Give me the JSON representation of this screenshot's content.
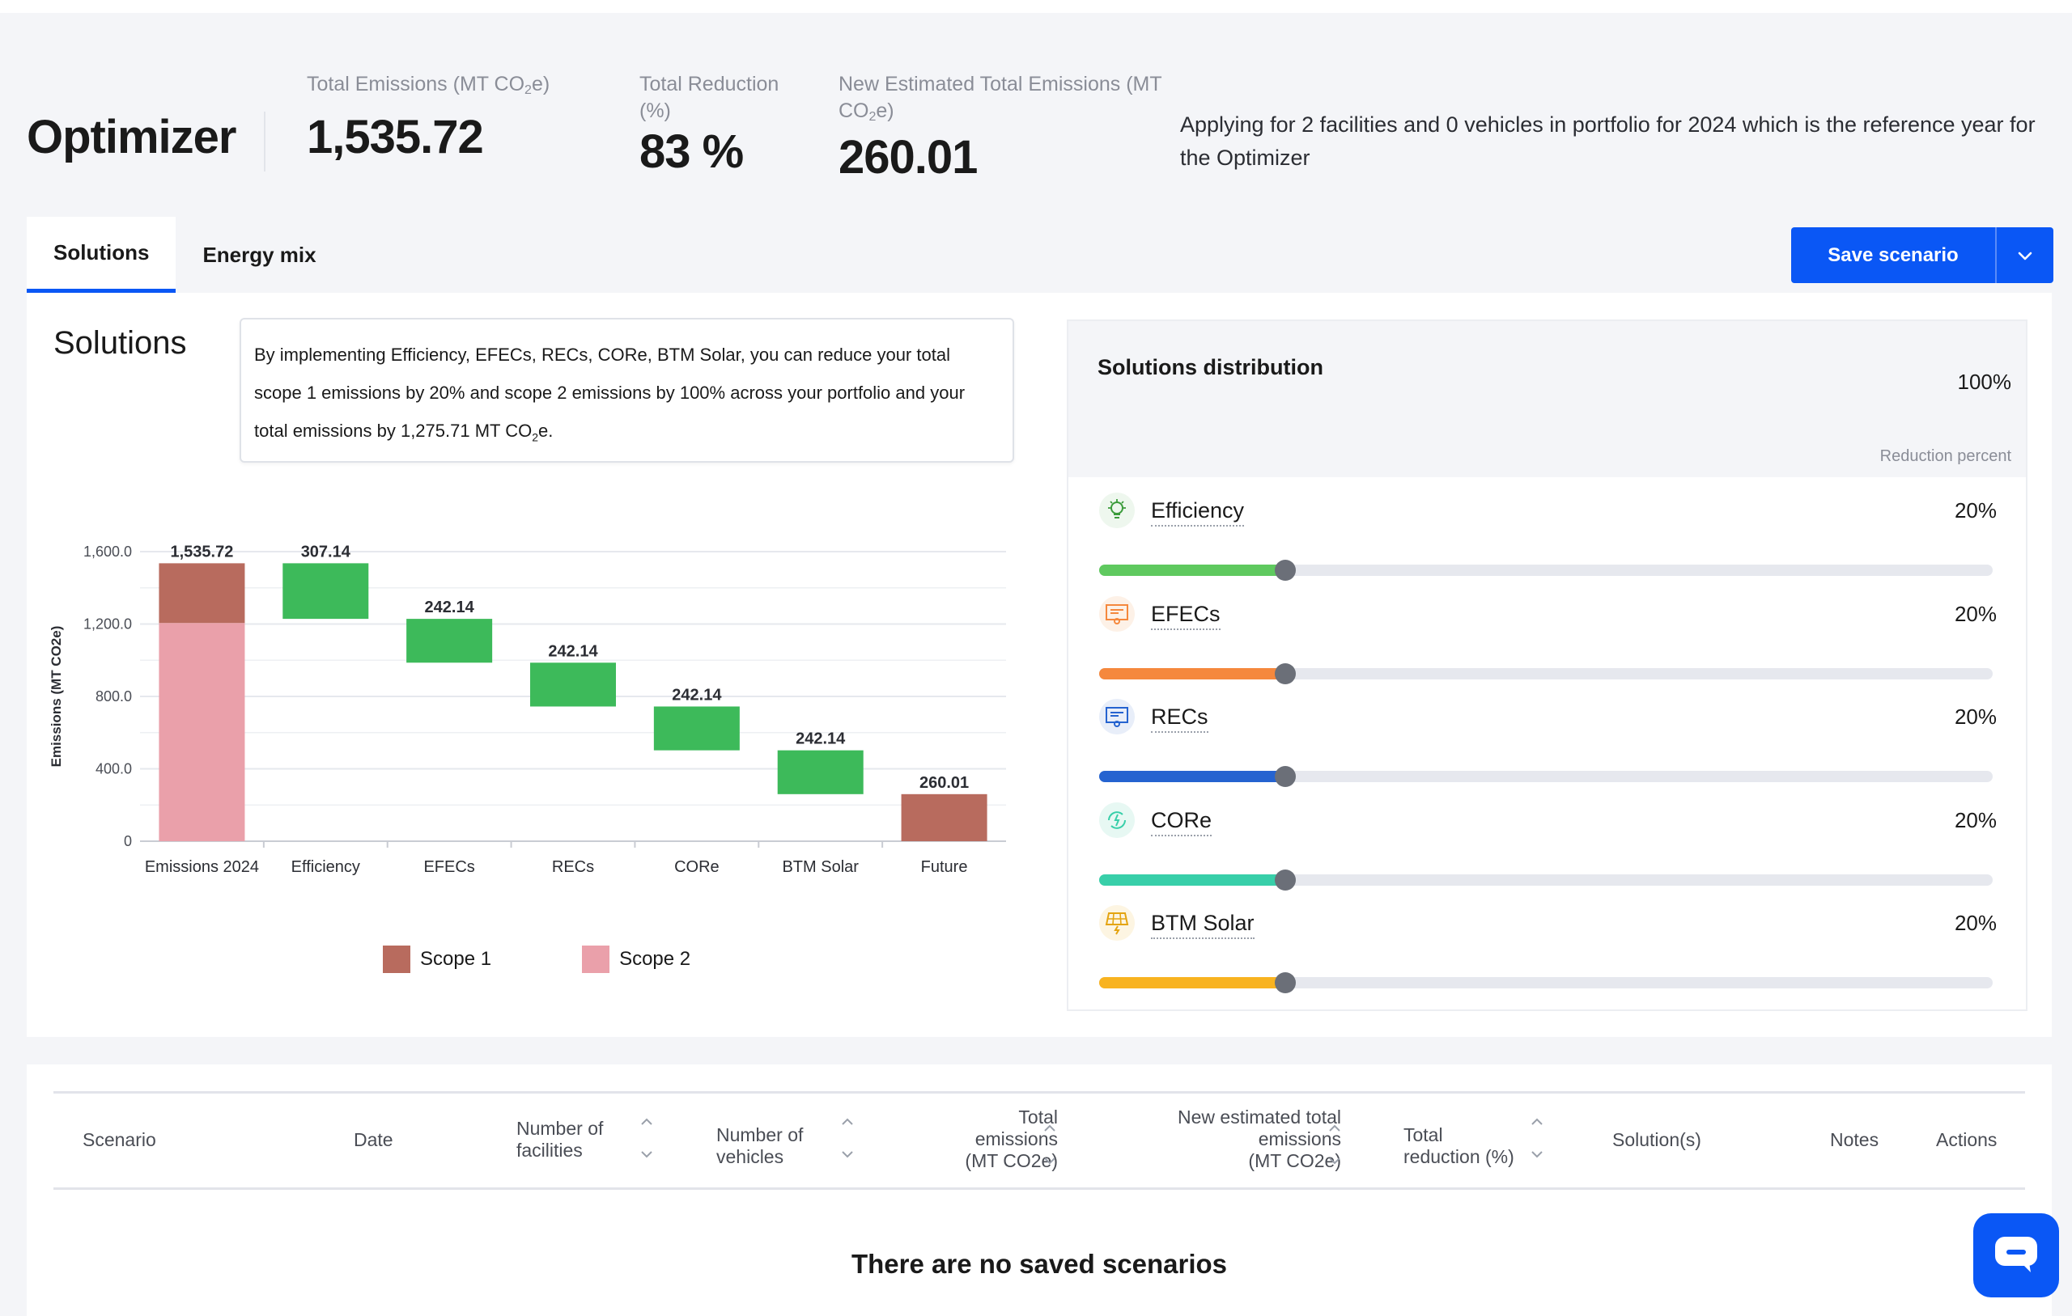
{
  "app": {
    "title": "Optimizer"
  },
  "header": {
    "total_emissions": {
      "label_pre": "Total Emissions (MT CO",
      "label_sub": "2",
      "label_post": "e)",
      "value": "1,535.72"
    },
    "total_reduction": {
      "label_line1": "Total Reduction",
      "label_line2": "(%)",
      "value": "83 %"
    },
    "new_total": {
      "label_line1": "New Estimated Total Emissions (MT",
      "label_pre": "CO",
      "label_sub": "2",
      "label_post": "e)",
      "value": "260.01"
    },
    "note": "Applying for 2 facilities and 0 vehicles in portfolio for 2024 which is the reference year for the Optimizer"
  },
  "tabs": [
    {
      "label": "Solutions"
    },
    {
      "label": "Energy mix"
    }
  ],
  "actions": {
    "save_label": "Save scenario"
  },
  "solutions": {
    "title": "Solutions",
    "callout_main": "By implementing Efficiency, EFECs, RECs, CORe, BTM Solar, you can reduce your total scope 1 emissions by 20% and scope 2 emissions by 100% across your portfolio and your total emissions by 1,275.71 MT CO",
    "callout_sub": "2",
    "callout_end": "e."
  },
  "chart_data": {
    "type": "bar",
    "subtype": "waterfall",
    "ylabel": "Emissions (MT CO2e)",
    "ylim": [
      0,
      1600
    ],
    "yticks": [
      "0",
      "400.0",
      "800.0",
      "1,200.0",
      "1,600.0"
    ],
    "categories": [
      "Emissions 2024",
      "Efficiency",
      "EFECs",
      "RECs",
      "CORe",
      "BTM Solar",
      "Future"
    ],
    "labels": [
      "1,535.72",
      "307.14",
      "242.14",
      "242.14",
      "242.14",
      "242.14",
      "260.01"
    ],
    "base": [
      {
        "scope1": 330,
        "scope2": 1205.72
      }
    ],
    "steps": [
      {
        "name": "Efficiency",
        "from": 1535.72,
        "to": 1228.58
      },
      {
        "name": "EFECs",
        "from": 1228.58,
        "to": 986.44
      },
      {
        "name": "RECs",
        "from": 986.44,
        "to": 744.3
      },
      {
        "name": "CORe",
        "from": 744.3,
        "to": 502.16
      },
      {
        "name": "BTM Solar",
        "from": 502.16,
        "to": 260.01
      }
    ],
    "future": 260.01,
    "legend": [
      {
        "name": "Scope 1",
        "color": "#b86b5e"
      },
      {
        "name": "Scope 2",
        "color": "#eaa0aa"
      }
    ],
    "colors": {
      "reduction": "#3dba5a",
      "scope1": "#b86b5e",
      "scope2": "#eaa0aa",
      "future": "#b86b5e"
    }
  },
  "distribution": {
    "title": "Solutions distribution",
    "total": "100%",
    "subtitle": "Reduction percent",
    "items": [
      {
        "name": "Efficiency",
        "pct": "20%",
        "value": 0.2,
        "color": "#5fc95f",
        "icon": "lightbulb-icon",
        "icon_color": "#3a9b3a",
        "icon_bg": "#eef7ee"
      },
      {
        "name": "EFECs",
        "pct": "20%",
        "value": 0.2,
        "color": "#f5883d",
        "icon": "certificate-icon",
        "icon_color": "#f5883d",
        "icon_bg": "#fdf1e7"
      },
      {
        "name": "RECs",
        "pct": "20%",
        "value": 0.2,
        "color": "#2563d0",
        "icon": "certificate-icon",
        "icon_color": "#2563d0",
        "icon_bg": "#e8eef9"
      },
      {
        "name": "CORe",
        "pct": "20%",
        "value": 0.2,
        "color": "#38cfa9",
        "icon": "recycle-energy-icon",
        "icon_color": "#38cfa9",
        "icon_bg": "#e7f8f3"
      },
      {
        "name": "BTM Solar",
        "pct": "20%",
        "value": 0.2,
        "color": "#f8b320",
        "icon": "solar-panel-icon",
        "icon_color": "#e4a410",
        "icon_bg": "#fdf5e2"
      }
    ]
  },
  "table": {
    "columns": [
      {
        "line1": "Scenario",
        "line2": "",
        "line3": ""
      },
      {
        "line1": "Date",
        "line2": "",
        "line3": ""
      },
      {
        "line1": "Number of",
        "line2": "facilities",
        "line3": ""
      },
      {
        "line1": "Number of",
        "line2": "vehicles",
        "line3": ""
      },
      {
        "line1": "Total",
        "line2": "emissions",
        "line3": "(MT CO2e)"
      },
      {
        "line1": "New estimated total",
        "line2": "emissions",
        "line3": "(MT CO2e)"
      },
      {
        "line1": "Total",
        "line2": "reduction (%)",
        "line3": ""
      },
      {
        "line1": "Solution(s)",
        "line2": "",
        "line3": ""
      },
      {
        "line1": "Notes",
        "line2": "",
        "line3": ""
      },
      {
        "line1": "Actions",
        "line2": "",
        "line3": ""
      }
    ],
    "empty_message": "There are no saved scenarios"
  }
}
